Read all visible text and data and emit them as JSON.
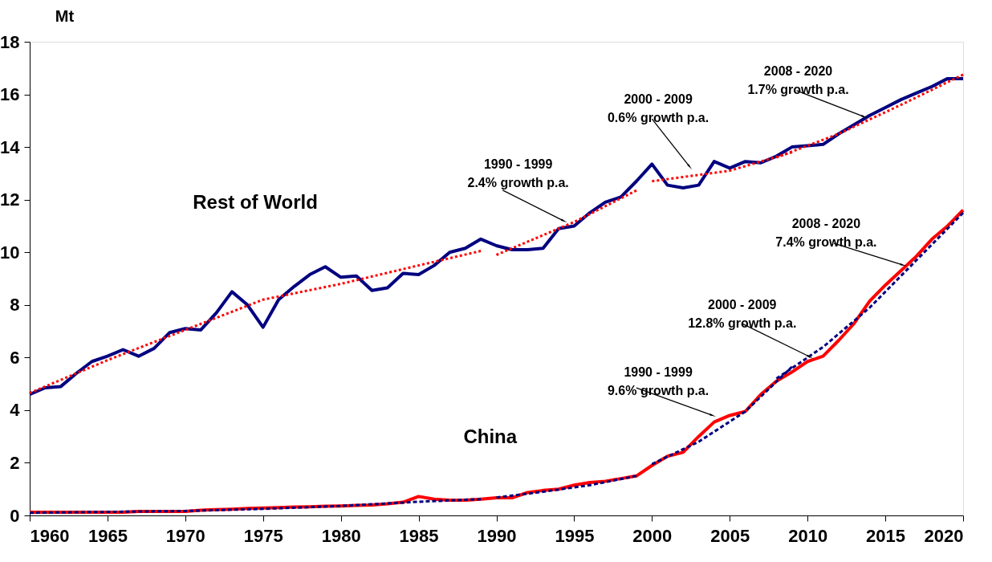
{
  "chart_data": {
    "type": "line",
    "ylabel": "Mt",
    "x": [
      1960,
      1961,
      1962,
      1963,
      1964,
      1965,
      1966,
      1967,
      1968,
      1969,
      1970,
      1971,
      1972,
      1973,
      1974,
      1975,
      1976,
      1977,
      1978,
      1979,
      1980,
      1981,
      1982,
      1983,
      1984,
      1985,
      1986,
      1987,
      1988,
      1989,
      1990,
      1991,
      1992,
      1993,
      1994,
      1995,
      1996,
      1997,
      1998,
      1999,
      2000,
      2001,
      2002,
      2003,
      2004,
      2005,
      2006,
      2007,
      2008,
      2009,
      2010,
      2011,
      2012,
      2013,
      2014,
      2015,
      2016,
      2017,
      2018,
      2019,
      2020
    ],
    "xlim": [
      1960,
      2020
    ],
    "xticks": [
      1960,
      1965,
      1970,
      1975,
      1980,
      1985,
      1990,
      1995,
      2000,
      2005,
      2010,
      2015,
      2020
    ],
    "ylim": [
      0,
      18
    ],
    "yticks": [
      0,
      2,
      4,
      6,
      8,
      10,
      12,
      14,
      16,
      18
    ],
    "grid": false,
    "series": [
      {
        "name": "Rest of World",
        "color": "#000080",
        "line_style": "solid",
        "values": [
          4.6,
          4.85,
          4.9,
          5.4,
          5.85,
          6.05,
          6.3,
          6.05,
          6.35,
          6.95,
          7.1,
          7.05,
          7.7,
          8.5,
          8.0,
          7.15,
          8.2,
          8.7,
          9.15,
          9.45,
          9.05,
          9.1,
          8.55,
          8.65,
          9.2,
          9.15,
          9.5,
          10.0,
          10.15,
          10.5,
          10.25,
          10.1,
          10.1,
          10.15,
          10.9,
          11.0,
          11.5,
          11.9,
          12.1,
          12.7,
          13.35,
          12.55,
          12.45,
          12.55,
          13.45,
          13.2,
          13.45,
          13.4,
          13.65,
          14.0,
          14.05,
          14.1,
          14.5,
          14.85,
          15.2,
          15.5,
          15.8,
          16.05,
          16.3,
          16.6,
          16.6
        ]
      },
      {
        "color": "#ff0000",
        "line_style": "dotted",
        "x": [
          1960,
          1965,
          1970,
          1975,
          1980,
          1985,
          1989
        ],
        "values": [
          4.65,
          5.9,
          7.05,
          8.2,
          8.8,
          9.5,
          10.05
        ]
      },
      {
        "color": "#ff0000",
        "line_style": "dotted",
        "x": [
          1990,
          1995,
          1999
        ],
        "values": [
          9.9,
          11.15,
          12.35
        ]
      },
      {
        "color": "#ff0000",
        "line_style": "dotted",
        "x": [
          2000,
          2005,
          2009
        ],
        "values": [
          12.7,
          13.1,
          13.8
        ]
      },
      {
        "color": "#ff0000",
        "line_style": "dotted",
        "x": [
          2008,
          2012,
          2016,
          2020
        ],
        "values": [
          13.6,
          14.5,
          15.6,
          16.75
        ]
      },
      {
        "name": "China",
        "color": "#ff0000",
        "line_style": "solid",
        "values": [
          0.12,
          0.12,
          0.12,
          0.12,
          0.12,
          0.12,
          0.12,
          0.15,
          0.15,
          0.15,
          0.15,
          0.2,
          0.22,
          0.24,
          0.27,
          0.28,
          0.3,
          0.32,
          0.33,
          0.35,
          0.36,
          0.38,
          0.4,
          0.44,
          0.5,
          0.72,
          0.62,
          0.58,
          0.58,
          0.62,
          0.67,
          0.67,
          0.87,
          0.95,
          1.0,
          1.15,
          1.25,
          1.3,
          1.4,
          1.5,
          1.9,
          2.25,
          2.4,
          3.0,
          3.55,
          3.8,
          3.95,
          4.6,
          5.1,
          5.45,
          5.85,
          6.05,
          6.65,
          7.3,
          8.15,
          8.75,
          9.3,
          9.85,
          10.5,
          11.0,
          11.6
        ]
      },
      {
        "color": "#000080",
        "line_style": "dashed",
        "x": [
          1960,
          1970,
          1975,
          1980,
          1985,
          1989
        ],
        "values": [
          0.1,
          0.17,
          0.25,
          0.36,
          0.52,
          0.62
        ]
      },
      {
        "color": "#000080",
        "line_style": "dashed",
        "x": [
          1990,
          1993,
          1996,
          1999
        ],
        "values": [
          0.68,
          0.9,
          1.15,
          1.5
        ]
      },
      {
        "color": "#000080",
        "line_style": "dashed",
        "x": [
          2000,
          2003,
          2006,
          2009
        ],
        "values": [
          1.95,
          2.8,
          3.95,
          5.65
        ]
      },
      {
        "color": "#000080",
        "line_style": "dashed",
        "x": [
          2008,
          2011,
          2014,
          2017,
          2020
        ],
        "values": [
          5.2,
          6.4,
          7.9,
          9.7,
          11.5
        ]
      }
    ],
    "annotations": [
      {
        "text": "1990 - 1999\n2.4% growth p.a.",
        "x": 1994.3,
        "y": 11.2
      },
      {
        "text": "2000 - 2009\n0.6% growth p.a.",
        "x": 2002.4,
        "y": 13.27
      },
      {
        "text": "2008 - 2020\n1.7% growth p.a.",
        "x": 2013.6,
        "y": 15.16
      },
      {
        "text": "1990 - 1999\n9.6% growth p.a.",
        "x": 2003.85,
        "y": 3.81
      },
      {
        "text": "2000 - 2009\n12.8% growth p.a.",
        "x": 2010.1,
        "y": 6.04
      },
      {
        "text": "2008 - 2020\n7.4% growth p.a.",
        "x": 2016.1,
        "y": 9.52
      }
    ]
  }
}
